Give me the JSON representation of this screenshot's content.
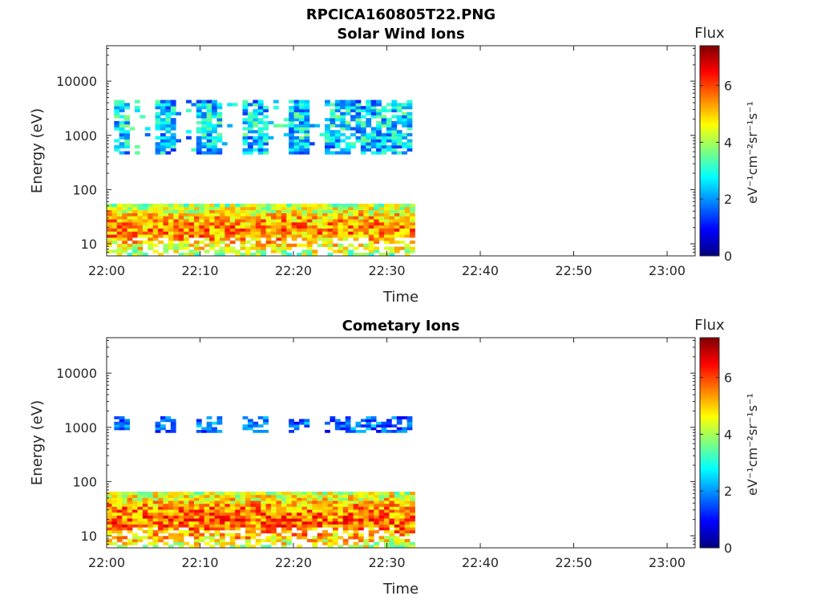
{
  "figure_title": "RPCICA160805T22.PNG",
  "chart_data": [
    {
      "type": "heatmap",
      "title": "Solar Wind Ions",
      "xlabel": "Time",
      "ylabel": "Energy (eV)",
      "x_ticks": [
        "22:00",
        "22:10",
        "22:20",
        "22:30",
        "22:40",
        "22:50",
        "23:00"
      ],
      "x_range_minutes": [
        0,
        63
      ],
      "y_scale": "log",
      "y_range": [
        6,
        45000
      ],
      "y_ticks": [
        {
          "value": 10,
          "label": "10"
        },
        {
          "value": 100,
          "label": "100"
        },
        {
          "value": 1000,
          "label": "1000"
        },
        {
          "value": 10000,
          "label": "10000"
        }
      ],
      "data_time_extent_minutes": [
        0,
        32.6
      ],
      "regions": [
        {
          "t0": 0,
          "t1": 32.6,
          "e0": 6,
          "e1": 55,
          "level": 5.0,
          "description": "low-energy band"
        },
        {
          "t0": 0.8,
          "t1": 32.6,
          "e0": 450,
          "e1": 4500,
          "level": 2.7,
          "description": "solar wind band"
        }
      ],
      "colorbar": {
        "label": "Flux",
        "units": "eV⁻¹cm⁻²sr⁻¹s⁻¹",
        "range": [
          0,
          7.4
        ],
        "ticks": [
          "0",
          "2",
          "4",
          "6"
        ],
        "colormap": "jet"
      }
    },
    {
      "type": "heatmap",
      "title": "Cometary Ions",
      "xlabel": "Time",
      "ylabel": "Energy (eV)",
      "x_ticks": [
        "22:00",
        "22:10",
        "22:20",
        "22:30",
        "22:40",
        "22:50",
        "23:00"
      ],
      "x_range_minutes": [
        0,
        63
      ],
      "y_scale": "log",
      "y_range": [
        6,
        45000
      ],
      "y_ticks": [
        {
          "value": 10,
          "label": "10"
        },
        {
          "value": 100,
          "label": "100"
        },
        {
          "value": 1000,
          "label": "1000"
        },
        {
          "value": 10000,
          "label": "10000"
        }
      ],
      "data_time_extent_minutes": [
        0,
        32.6
      ],
      "regions": [
        {
          "t0": 0,
          "t1": 32.6,
          "e0": 6,
          "e1": 65,
          "level": 5.3,
          "description": "low-energy band"
        },
        {
          "t0": 0.8,
          "t1": 32.6,
          "e0": 800,
          "e1": 1600,
          "level": 1.5,
          "description": "~1 keV band"
        }
      ],
      "colorbar": {
        "label": "Flux",
        "units": "eV⁻¹cm⁻²sr⁻¹s⁻¹",
        "range": [
          0,
          7.4
        ],
        "ticks": [
          "0",
          "2",
          "4",
          "6"
        ],
        "colormap": "jet"
      }
    }
  ]
}
